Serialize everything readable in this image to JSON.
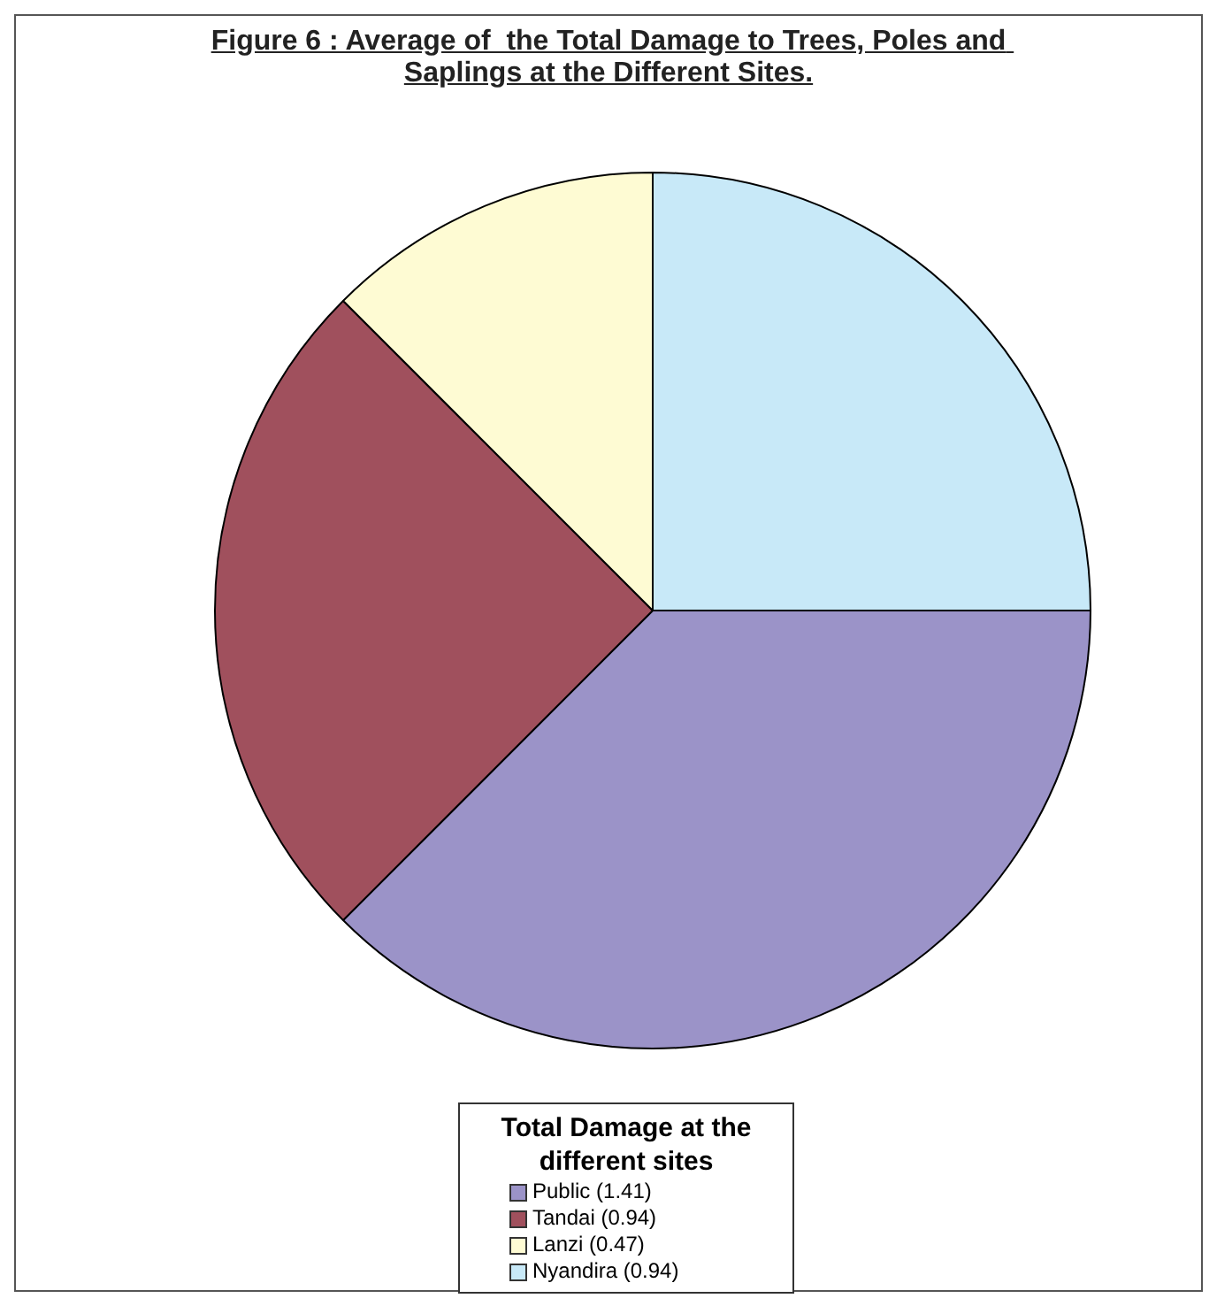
{
  "chart_data": {
    "type": "pie",
    "title": "Figure 6 : Average of  the Total Damage to Trees, Poles and Saplings at the Different Sites.",
    "legend_title": "Total Damage at the different sites",
    "legend": "bottom",
    "categories": [
      "Public (1.41)",
      "Tandai (0.94)",
      "Lanzi (0.47)",
      "Nyandira (0.94)"
    ],
    "values": [
      1.41,
      0.94,
      0.47,
      0.94
    ],
    "colors": [
      "#9b93c8",
      "#a0505d",
      "#fefbd3",
      "#c8e9f8"
    ]
  }
}
